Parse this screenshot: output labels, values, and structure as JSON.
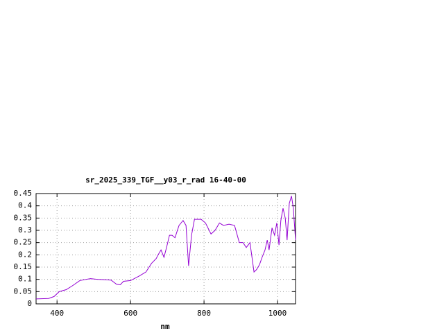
{
  "chart_data": {
    "type": "line",
    "title": "sr_2025_339_TGF__y03_r_rad 16-40-00",
    "x_label": "nm",
    "x": [
      343,
      377,
      392,
      406,
      425,
      443,
      462,
      491,
      509,
      547,
      562,
      572,
      581,
      600,
      623,
      642,
      657,
      670,
      675,
      683,
      691,
      698,
      706,
      713,
      721,
      732,
      743,
      751,
      758,
      766,
      774,
      792,
      804,
      819,
      830,
      842,
      853,
      868,
      883,
      896,
      906,
      915,
      925,
      936,
      943,
      951,
      958,
      966,
      972,
      977,
      985,
      992,
      998,
      1004,
      1009,
      1015,
      1021,
      1026,
      1032,
      1038,
      1043,
      1049
    ],
    "series": [
      {
        "color": "#9400d3",
        "values": [
          0.02,
          0.022,
          0.03,
          0.05,
          0.058,
          0.075,
          0.095,
          0.103,
          0.1,
          0.097,
          0.08,
          0.078,
          0.092,
          0.095,
          0.113,
          0.13,
          0.165,
          0.185,
          0.2,
          0.22,
          0.19,
          0.23,
          0.28,
          0.28,
          0.27,
          0.32,
          0.34,
          0.32,
          0.155,
          0.28,
          0.345,
          0.345,
          0.33,
          0.285,
          0.3,
          0.33,
          0.32,
          0.325,
          0.32,
          0.25,
          0.25,
          0.23,
          0.25,
          0.13,
          0.14,
          0.16,
          0.19,
          0.22,
          0.26,
          0.22,
          0.31,
          0.28,
          0.33,
          0.24,
          0.34,
          0.39,
          0.35,
          0.26,
          0.41,
          0.44,
          0.39,
          0.26
        ]
      }
    ],
    "xlim": [
      343,
      1049
    ],
    "ylim": [
      0,
      0.45
    ],
    "xticks": [
      400,
      600,
      800,
      1000
    ],
    "yticks": [
      0,
      0.05,
      0.1,
      0.15,
      0.2,
      0.25,
      0.3,
      0.35,
      0.4,
      0.45
    ],
    "grid": true
  }
}
